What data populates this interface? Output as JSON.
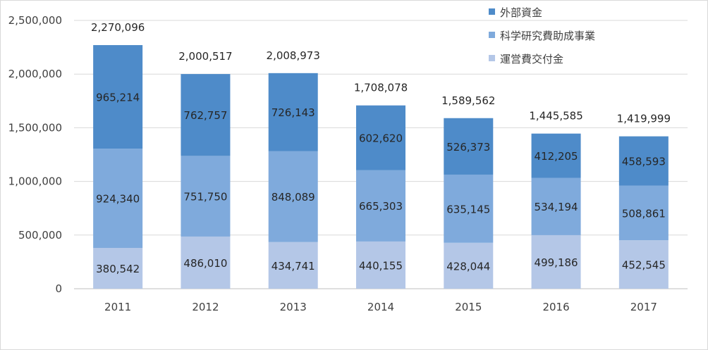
{
  "chart_data": {
    "type": "bar",
    "stacked": true,
    "title": "",
    "xlabel": "",
    "ylabel": "",
    "ylim": [
      0,
      2500000
    ],
    "yticks": [
      0,
      500000,
      1000000,
      1500000,
      2000000,
      2500000
    ],
    "ytick_labels": [
      "0",
      "500,000",
      "1,000,000",
      "1,500,000",
      "2,000,000",
      "2,500,000"
    ],
    "grid": true,
    "legend_position": "top-right",
    "categories": [
      "2011",
      "2012",
      "2013",
      "2014",
      "2015",
      "2016",
      "2017"
    ],
    "series": [
      {
        "name": "運営費交付金",
        "color": "#b4c7e7",
        "values": [
          380542,
          486010,
          434741,
          440155,
          428044,
          499186,
          452545
        ]
      },
      {
        "name": "科学研究費助成事業",
        "color": "#7faadc",
        "values": [
          924340,
          751750,
          848089,
          665303,
          635145,
          534194,
          508861
        ]
      },
      {
        "name": "外部資金",
        "color": "#4e8bc9",
        "values": [
          965214,
          762757,
          726143,
          602620,
          526373,
          412205,
          458593
        ]
      }
    ],
    "data_labels": [
      [
        "380,542",
        "486,010",
        "434,741",
        "440,155",
        "428,044",
        "499,186",
        "452,545"
      ],
      [
        "924,340",
        "751,750",
        "848,089",
        "665,303",
        "635,145",
        "534,194",
        "508,861"
      ],
      [
        "965,214",
        "762,757",
        "726,143",
        "602,620",
        "526,373",
        "412,205",
        "458,593"
      ]
    ],
    "totals": [
      2270096,
      2000517,
      2008973,
      1708078,
      1589562,
      1445585,
      1419999
    ],
    "total_labels": [
      "2,270,096",
      "2,000,517",
      "2,008,973",
      "1,708,078",
      "1,589,562",
      "1,445,585",
      "1,419,999"
    ],
    "legend_order": [
      "外部資金",
      "科学研究費助成事業",
      "運営費交付金"
    ]
  }
}
